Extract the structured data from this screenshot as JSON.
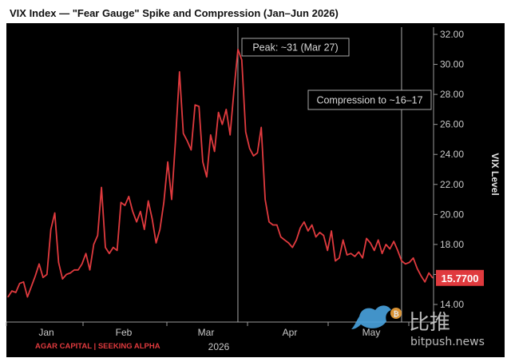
{
  "chart_data": {
    "type": "line",
    "title": "VIX Index — \"Fear Gauge\" Spike and Compression (Jan–Jun 2026)",
    "ylabel": "VIX Level",
    "xlabel": "2026",
    "ylim": [
      13.8,
      32.6
    ],
    "x_ticks": [
      "Jan",
      "Feb",
      "Mar",
      "Apr",
      "May"
    ],
    "y_ticks": [
      14,
      16,
      18,
      20,
      22,
      24,
      26,
      28,
      30,
      32
    ],
    "y_tick_labels": [
      "14.00",
      "16.00",
      "18.00",
      "20.00",
      "22.00",
      "24.00",
      "26.00",
      "28.00",
      "30.00",
      "32.00"
    ],
    "grid": false,
    "axis_side": "right",
    "last_value": 15.77,
    "last_value_label": "15.7700",
    "line_color": "#e03a3e",
    "series": [
      {
        "values": [
          14.5,
          14.9,
          14.8,
          15.4,
          15.5,
          14.5,
          15.2,
          15.9,
          16.7,
          15.8,
          16.0,
          19.0,
          20.1,
          16.8,
          15.7,
          16.0,
          16.1,
          16.3,
          16.3,
          16.7,
          17.4,
          16.3,
          18.0,
          18.6,
          21.8,
          17.8,
          17.4,
          17.8,
          17.6,
          20.8,
          20.6,
          21.2,
          20.2,
          19.5,
          20.2,
          19.0,
          20.9,
          19.7,
          18.1,
          19.0,
          20.8,
          23.5,
          21.0,
          25.0,
          29.5,
          25.4,
          24.9,
          24.3,
          27.3,
          27.2,
          23.5,
          22.5,
          25.3,
          24.2,
          26.8,
          26.0,
          27.0,
          25.3,
          28.3,
          31.0,
          30.3,
          25.5,
          24.4,
          23.9,
          24.1,
          25.8,
          21.0,
          19.5,
          19.3,
          19.3,
          18.5,
          18.3,
          18.1,
          17.8,
          18.3,
          19.1,
          19.5,
          18.9,
          19.3,
          18.5,
          18.8,
          18.6,
          17.6,
          18.9,
          16.9,
          17.1,
          18.3,
          17.3,
          17.4,
          17.2,
          17.5,
          17.1,
          18.4,
          18.1,
          17.6,
          18.3,
          17.4,
          18.0,
          17.7,
          18.2,
          17.6,
          16.9,
          16.7,
          16.8,
          17.1,
          16.4,
          15.9,
          15.5,
          16.1,
          15.77
        ]
      }
    ],
    "annotations": [
      {
        "label": "Peak: ~31 (Mar 27)",
        "x_index": 59,
        "value": 31.0
      },
      {
        "label": "Compression to ~16–17",
        "x_index": 101
      }
    ],
    "source": "AGAR CAPITAL | SEEKING ALPHA"
  },
  "watermark": {
    "text_cn": "比推",
    "text_domain": "bitpush.news"
  },
  "colors": {
    "background": "#000000",
    "line": "#e03a3e",
    "axis": "#9a9a9a",
    "text": "#c9c9c9"
  }
}
